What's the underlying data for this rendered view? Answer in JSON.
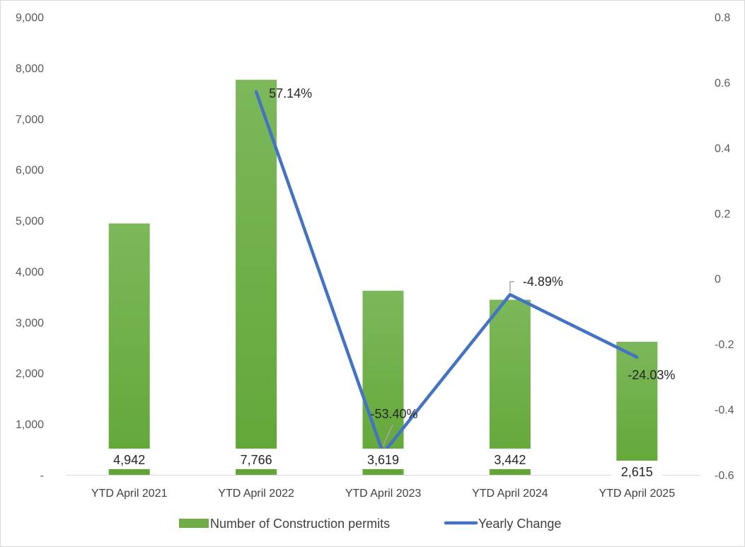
{
  "chart_data": {
    "type": "bar",
    "title": "",
    "categories": [
      "YTD April 2021",
      "YTD April 2022",
      "YTD April 2023",
      "YTD April 2024",
      "YTD April 2025"
    ],
    "series": [
      {
        "name": "Number of Construction permits",
        "type": "bar",
        "axis": "left",
        "values": [
          4942,
          7766,
          3619,
          3442,
          2615
        ],
        "labels": [
          "4,942",
          "7,766",
          "3,619",
          "3,442",
          "2,615"
        ],
        "color": "#70ad47"
      },
      {
        "name": "Yearly Change",
        "type": "line",
        "axis": "right",
        "values": [
          null,
          0.5714,
          -0.534,
          -0.0489,
          -0.2403
        ],
        "labels": [
          "",
          "57.14%",
          "-53.40%",
          "-4.89%",
          "-24.03%"
        ],
        "color": "#4472c4"
      }
    ],
    "y_left": {
      "min": 0,
      "max": 9000,
      "ticks": [
        0,
        1000,
        2000,
        3000,
        4000,
        5000,
        6000,
        7000,
        8000,
        9000
      ],
      "tick_labels": [
        "-",
        "1,000",
        "2,000",
        "3,000",
        "4,000",
        "5,000",
        "6,000",
        "7,000",
        "8,000",
        "9,000"
      ]
    },
    "y_right": {
      "min": -0.6,
      "max": 0.8,
      "ticks": [
        -0.6,
        -0.4,
        -0.2,
        0,
        0.2,
        0.4,
        0.6,
        0.8
      ],
      "tick_labels": [
        "-0.6",
        "-0.4",
        "-0.2",
        "0",
        "0.2",
        "0.4",
        "0.6",
        "0.8"
      ]
    },
    "legend": {
      "position": "bottom",
      "entries": [
        "Number of Construction permits",
        "Yearly Change"
      ]
    },
    "grid": false
  }
}
